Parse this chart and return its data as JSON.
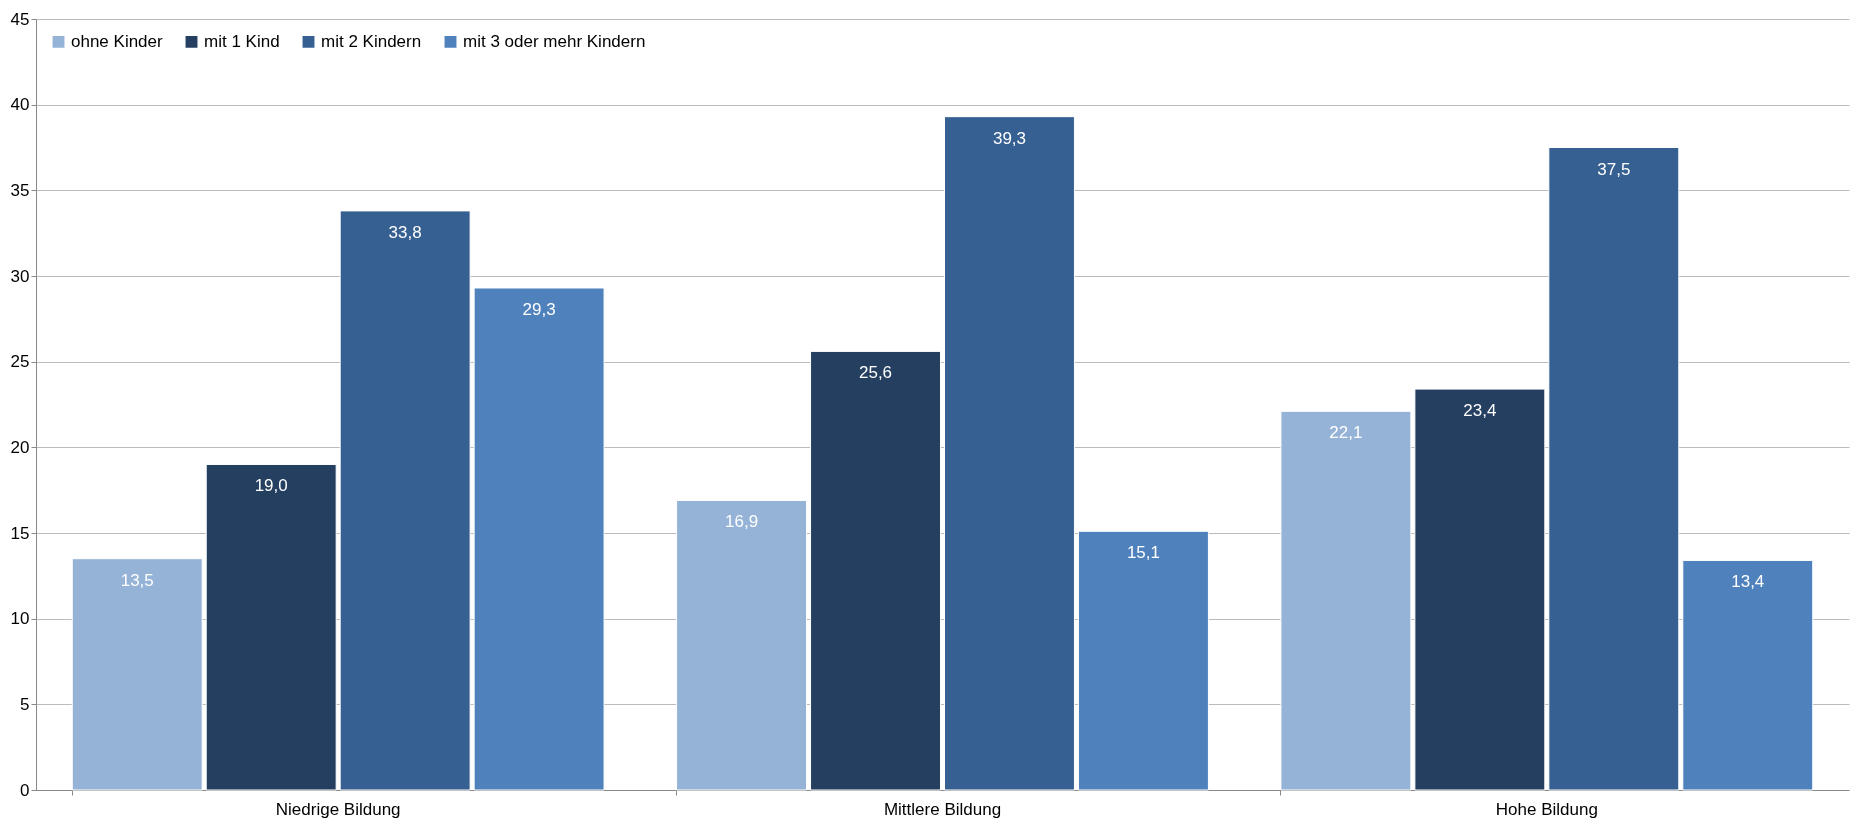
{
  "chart_data": {
    "type": "bar",
    "categories": [
      "Niedrige Bildung",
      "Mittlere Bildung",
      "Hohe Bildung"
    ],
    "series": [
      {
        "name": "ohne Kinder",
        "color": "#95b3d7",
        "values": [
          13.5,
          16.9,
          22.1
        ],
        "value_labels": [
          "13,5",
          "16,9",
          "22,1"
        ]
      },
      {
        "name": "mit 1 Kind",
        "color": "#243f60",
        "values": [
          19.0,
          25.6,
          23.4
        ],
        "value_labels": [
          "19,0",
          "25,6",
          "23,4"
        ]
      },
      {
        "name": "mit 2 Kindern",
        "color": "#366092",
        "values": [
          33.8,
          39.3,
          37.5
        ],
        "value_labels": [
          "33,8",
          "39,3",
          "37,5"
        ]
      },
      {
        "name": "mit 3 oder mehr Kindern",
        "color": "#4f81bd",
        "values": [
          29.3,
          15.1,
          13.4
        ],
        "value_labels": [
          "29,3",
          "15,1",
          "13,4"
        ]
      }
    ],
    "ylim": [
      0,
      45
    ],
    "yticks": [
      0,
      5,
      10,
      15,
      20,
      25,
      30,
      35,
      40,
      45
    ],
    "grid": "y",
    "legend": "top left"
  }
}
